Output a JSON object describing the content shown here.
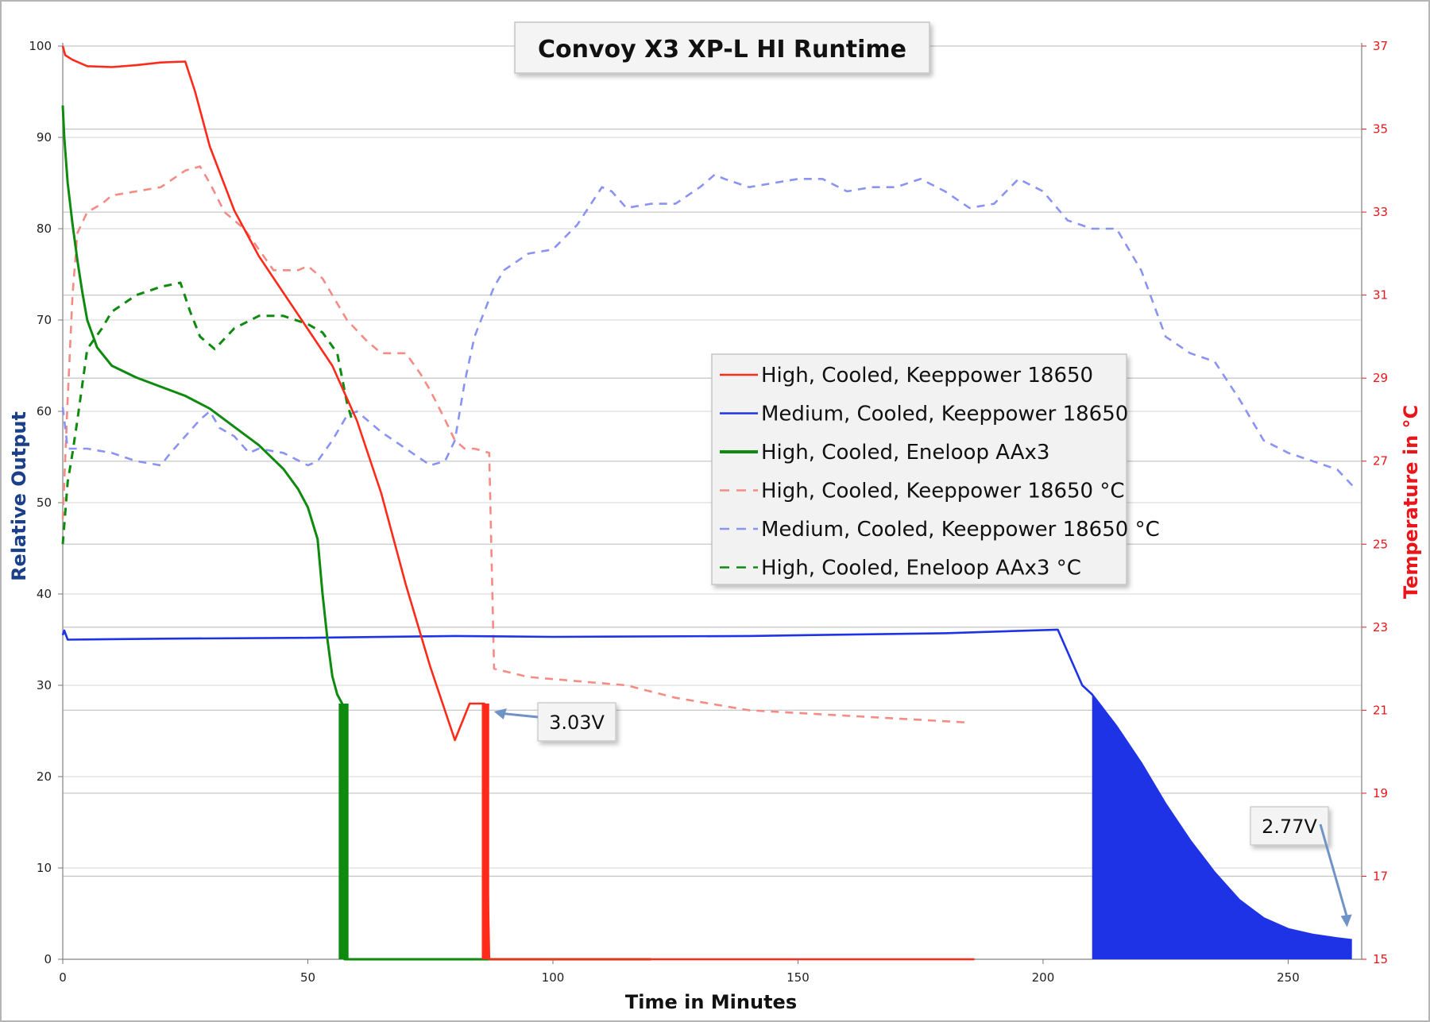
{
  "chart_data": {
    "type": "line",
    "title": "Convoy X3 XP-L HI Runtime",
    "xlabel": "Time in Minutes",
    "ylabel": "Relative Output",
    "y2label": "Temperature in °C",
    "xlim": [
      0,
      265
    ],
    "ylim": [
      0,
      100
    ],
    "y2lim": [
      15,
      37
    ],
    "xticks": [
      0,
      50,
      100,
      150,
      200,
      250
    ],
    "yticks": [
      0,
      10,
      20,
      30,
      40,
      50,
      60,
      70,
      80,
      90,
      100
    ],
    "y2ticks": [
      15,
      17,
      19,
      21,
      23,
      25,
      27,
      29,
      31,
      33,
      35,
      37
    ],
    "grid": true,
    "legend_position": "center-right",
    "colors": {
      "high_keeppower": "#ff2a1a",
      "medium_keeppower": "#1f33e6",
      "high_eneloop": "#0e8a0e",
      "high_keeppower_temp": "#f48b85",
      "medium_keeppower_temp": "#8a93f2",
      "high_eneloop_temp": "#0e8a0e",
      "axis_right": "#e8151a",
      "axis_left_title": "#1c3f8a"
    },
    "series": [
      {
        "name": "High, Cooled, Keeppower 18650",
        "axis": "left",
        "style": "solid",
        "color_key": "high_keeppower",
        "x": [
          0,
          0.5,
          2,
          5,
          10,
          15,
          20,
          25,
          27,
          30,
          35,
          40,
          45,
          50,
          55,
          60,
          65,
          70,
          75,
          80,
          83,
          86,
          87,
          120,
          186
        ],
        "y": [
          100,
          99,
          98.5,
          97.8,
          97.7,
          97.9,
          98.2,
          98.3,
          95,
          89,
          82,
          77,
          73,
          69,
          65,
          59,
          51,
          41,
          32,
          24,
          28,
          28,
          0,
          0,
          0
        ]
      },
      {
        "name": "Medium, Cooled, Keeppower 18650",
        "axis": "left",
        "style": "solid",
        "color_key": "medium_keeppower",
        "x": [
          0,
          0.3,
          1,
          20,
          50,
          80,
          100,
          140,
          180,
          203,
          208,
          210,
          215,
          220,
          225,
          230,
          235,
          240,
          245,
          250,
          255,
          260,
          263
        ],
        "y": [
          35.5,
          36,
          35,
          35.1,
          35.2,
          35.4,
          35.3,
          35.4,
          35.7,
          36.1,
          30,
          29,
          25.5,
          21.5,
          17,
          13,
          9.5,
          6.5,
          4.5,
          3.3,
          2.7,
          2.3,
          2.1
        ]
      },
      {
        "name": "High, Cooled, Eneloop AAx3",
        "axis": "left",
        "style": "solid",
        "color_key": "high_eneloop",
        "x": [
          0,
          0.3,
          1,
          2,
          3,
          4,
          5,
          7,
          10,
          15,
          20,
          25,
          30,
          35,
          40,
          45,
          48,
          50,
          52,
          53,
          54,
          55,
          56,
          57,
          57.5,
          58,
          120
        ],
        "y": [
          93.5,
          90,
          85,
          80.5,
          76.5,
          73,
          70,
          67,
          65,
          63.7,
          62.7,
          61.7,
          60.3,
          58.3,
          56.3,
          53.7,
          51.5,
          49.5,
          46,
          40,
          35,
          31,
          29,
          28,
          0,
          0,
          0
        ]
      },
      {
        "name": "High, Cooled, Keeppower 18650 °C",
        "axis": "right",
        "style": "dashed",
        "color_key": "high_keeppower_temp",
        "x": [
          0,
          1,
          2,
          3,
          5,
          8,
          10,
          15,
          20,
          25,
          28,
          30,
          33,
          37,
          40,
          43,
          45,
          48,
          50,
          53,
          55,
          58,
          62,
          65,
          70,
          73,
          75,
          78,
          80,
          82,
          84,
          87,
          88,
          95,
          105,
          115,
          125,
          140,
          155,
          170,
          185
        ],
        "y": [
          25.6,
          28.5,
          31,
          32.5,
          33.0,
          33.2,
          33.4,
          33.5,
          33.6,
          34.0,
          34.1,
          33.7,
          33.0,
          32.6,
          32.1,
          31.6,
          31.6,
          31.6,
          31.7,
          31.4,
          31.0,
          30.4,
          29.9,
          29.6,
          29.6,
          29.1,
          28.7,
          28.0,
          27.5,
          27.3,
          27.3,
          27.2,
          22.0,
          21.8,
          21.7,
          21.6,
          21.3,
          21.0,
          20.9,
          20.8,
          20.7
        ]
      },
      {
        "name": "Medium, Cooled, Keeppower 18650 °C",
        "axis": "right",
        "style": "dashed",
        "color_key": "medium_keeppower_temp",
        "x": [
          0,
          1,
          5,
          10,
          15,
          20,
          22,
          25,
          28,
          30,
          32,
          35,
          38,
          40,
          45,
          50,
          52,
          55,
          58,
          60,
          65,
          70,
          75,
          78,
          80,
          82,
          84,
          86,
          88,
          90,
          95,
          100,
          105,
          110,
          112,
          115,
          120,
          125,
          130,
          133,
          135,
          140,
          145,
          150,
          155,
          160,
          165,
          170,
          175,
          180,
          185,
          190,
          195,
          200,
          205,
          210,
          215,
          220,
          225,
          230,
          235,
          240,
          245,
          250,
          255,
          260,
          264
        ],
        "y": [
          28.3,
          27.3,
          27.3,
          27.2,
          27.0,
          26.9,
          27.2,
          27.6,
          28.0,
          28.2,
          27.8,
          27.6,
          27.2,
          27.3,
          27.2,
          26.9,
          27.0,
          27.5,
          28.1,
          28.2,
          27.7,
          27.3,
          26.9,
          27.0,
          27.5,
          28.9,
          30.0,
          30.6,
          31.2,
          31.6,
          32.0,
          32.1,
          32.7,
          33.6,
          33.5,
          33.1,
          33.2,
          33.2,
          33.6,
          33.9,
          33.8,
          33.6,
          33.7,
          33.8,
          33.8,
          33.5,
          33.6,
          33.6,
          33.8,
          33.5,
          33.1,
          33.2,
          33.8,
          33.5,
          32.8,
          32.6,
          32.6,
          31.6,
          30.0,
          29.6,
          29.4,
          28.5,
          27.5,
          27.2,
          27.0,
          26.8,
          26.3
        ]
      },
      {
        "name": "High, Cooled, Eneloop AAx3 °C",
        "axis": "right",
        "style": "dashed",
        "color_key": "high_eneloop_temp",
        "x": [
          0,
          1,
          2,
          3,
          5,
          8,
          10,
          15,
          20,
          24,
          26,
          28,
          31,
          35,
          40,
          45,
          50,
          53,
          56,
          58,
          59
        ],
        "y": [
          25.0,
          26.5,
          27.2,
          28.0,
          29.7,
          30.2,
          30.6,
          31.0,
          31.2,
          31.3,
          30.6,
          30.0,
          29.7,
          30.2,
          30.5,
          30.5,
          30.3,
          30.1,
          29.6,
          28.4,
          28.0
        ]
      }
    ],
    "annotations": [
      {
        "text": "3.03V",
        "points_to": {
          "x": 87,
          "y": 28
        },
        "position": "right"
      },
      {
        "text": "2.77V",
        "points_to": {
          "x": 263,
          "y": 3
        },
        "position": "above-left"
      }
    ]
  }
}
